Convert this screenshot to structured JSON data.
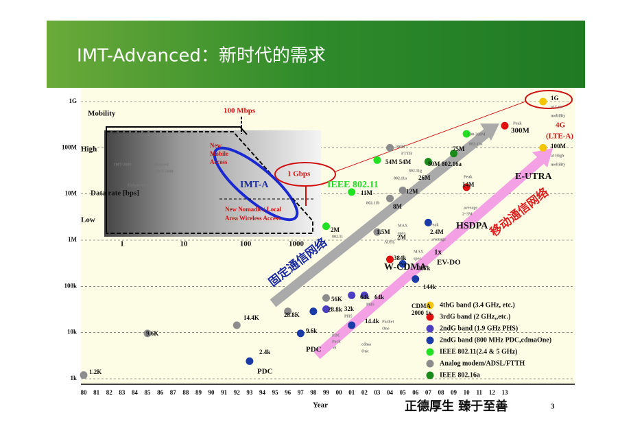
{
  "header": {
    "title": "IMT-Advanced：新时代的需求"
  },
  "chart_data": {
    "type": "scatter",
    "x_label": "Year",
    "log_y": true,
    "grid": true,
    "ylim": [
      1000,
      1000000000
    ],
    "yticks": [
      {
        "value": 1000,
        "label": "1k"
      },
      {
        "value": 10000,
        "label": "10k"
      },
      {
        "value": 100000,
        "label": "100k"
      },
      {
        "value": 1000000,
        "label": "1M"
      },
      {
        "value": 10000000,
        "label": "10M"
      },
      {
        "value": 100000000,
        "label": "100M"
      },
      {
        "value": 1000000000,
        "label": "1G"
      }
    ],
    "xlim": [
      1980,
      2018
    ],
    "xticks": [
      {
        "value": 1980,
        "label": "80"
      },
      {
        "value": 1981,
        "label": "81"
      },
      {
        "value": 1982,
        "label": "82"
      },
      {
        "value": 1983,
        "label": "83"
      },
      {
        "value": 1984,
        "label": "84"
      },
      {
        "value": 1985,
        "label": "85"
      },
      {
        "value": 1986,
        "label": "86"
      },
      {
        "value": 1987,
        "label": "87"
      },
      {
        "value": 1988,
        "label": "88"
      },
      {
        "value": 1989,
        "label": "89"
      },
      {
        "value": 1990,
        "label": "90"
      },
      {
        "value": 1991,
        "label": "91"
      },
      {
        "value": 1992,
        "label": "92"
      },
      {
        "value": 1993,
        "label": "93"
      },
      {
        "value": 1994,
        "label": "94"
      },
      {
        "value": 1995,
        "label": "95"
      },
      {
        "value": 1996,
        "label": "96"
      },
      {
        "value": 1997,
        "label": "97"
      },
      {
        "value": 1998,
        "label": "98"
      },
      {
        "value": 1999,
        "label": "99"
      },
      {
        "value": 2000,
        "label": "00"
      },
      {
        "value": 2001,
        "label": "01"
      },
      {
        "value": 2002,
        "label": "02"
      },
      {
        "value": 2003,
        "label": "03"
      },
      {
        "value": 2004,
        "label": "04"
      },
      {
        "value": 2005,
        "label": "05"
      },
      {
        "value": 2006,
        "label": "06"
      },
      {
        "value": 2007,
        "label": "07"
      },
      {
        "value": 2008,
        "label": "08"
      },
      {
        "value": 2009,
        "label": "09"
      },
      {
        "value": 2010,
        "label": "10"
      },
      {
        "value": 2011,
        "label": "11"
      },
      {
        "value": 2012,
        "label": "12"
      },
      {
        "value": 2013,
        "label": "13"
      }
    ],
    "series": [
      {
        "name": "4thG band  (3.4 GHz,  etc.)",
        "color": "#f5c400",
        "x": [
          2016,
          2016
        ],
        "values": [
          1000000000,
          100000000
        ]
      },
      {
        "name": "3rdG band  (2 GHz,,etc.)",
        "color": "#e01010",
        "x": [
          2004,
          2010,
          2013
        ],
        "values": [
          384000,
          14000000,
          300000000
        ]
      },
      {
        "name": "2ndG band  (1.9 GHz  PHS)",
        "color": "#4b3fc0",
        "x": [
          1999,
          2001,
          2002
        ],
        "values": [
          32000,
          64000,
          64000
        ]
      },
      {
        "name": "2ndG band  (800 MHz  PDC,cdmaOne)",
        "color": "#1a3aa8",
        "x": [
          1993,
          1997,
          1998,
          2001,
          2005,
          2006,
          2007
        ],
        "values": [
          2400,
          9600,
          28800,
          14400,
          307000,
          144000,
          2400000
        ]
      },
      {
        "name": "IEEE   802.11(2.4 & 5 GHz)",
        "color": "#22e022",
        "x": [
          1999,
          2001,
          2003,
          2010
        ],
        "values": [
          2000000,
          11000000,
          54000000,
          200000000
        ]
      },
      {
        "name": "Analog modem/ADSL/FTTH",
        "color": "#8c8c8c",
        "x": [
          1980,
          1985,
          1992,
          1996,
          1999,
          2003,
          2004,
          2005,
          2004
        ],
        "values": [
          1200,
          9600,
          14400,
          28800,
          56000,
          1500000,
          8000000,
          12000000,
          100000000
        ]
      },
      {
        "name": "IEEE   802.16a",
        "color": "#1a8a1a",
        "x": [
          2007,
          2009
        ],
        "values": [
          50000000,
          75000000
        ]
      }
    ]
  },
  "annotations": [
    "1.2K",
    "9.6K",
    "14.4K",
    "28.8K",
    "56K",
    "2.4k",
    "PDC",
    "9.6k",
    "PDC",
    "28.8k",
    "32k",
    "PHS",
    "64k",
    "64k",
    "PHS",
    "PDC",
    "Pack",
    "et",
    "14.4k",
    "Packet",
    "One",
    "cdma",
    "One",
    "2M",
    "802.11",
    "11M",
    "802.11b",
    "1.5M",
    "ADSL",
    "8M",
    "MAX",
    "spec.",
    "2M",
    "384k",
    "MAX",
    "spec.",
    "307k",
    "144k",
    "CDMA",
    "2000 1x",
    "W-CDMA",
    "1x",
    "EV-DO",
    "Peak",
    "2.4M",
    "average",
    "HSDPA",
    "Peak",
    "14M",
    "average",
    "2~3M",
    "E-UTRA",
    "Peak",
    "300M",
    "100M",
    "FTTH",
    "54M 54M",
    "802.11g",
    "802.11a",
    "26M",
    "12M",
    "75M",
    "50M 802.16a",
    "100-200M",
    "802.11n",
    "1G",
    "at Low",
    "mobility",
    "4G",
    "(LTE-A)",
    "100M",
    "at High",
    "mobility",
    "IEEE 802.11"
  ],
  "inset": {
    "mobility": "Mobility",
    "high": "High",
    "low": "Low",
    "x_label": "Data rate [bps]",
    "x_ticks": [
      "1",
      "10",
      "100",
      "1000"
    ],
    "r100": "100 Mbps",
    "r1g": "1 Gbps",
    "imta": "IMT-A",
    "imt2000": "IMT-2000",
    "enhanced": "Enhanced",
    "imt2000b": "IMT-2000",
    "enhancement": "Enhancement",
    "new_mobile": [
      "New",
      "Mobile",
      "Access"
    ],
    "nomadic": [
      "New Nomadic / Local",
      "Area Wireless Access"
    ]
  },
  "arrows": {
    "fixed": "固定通信网络",
    "mobile": "移动通信网络"
  },
  "footer": {
    "motto": "正德厚生  臻于至善",
    "page": "3"
  }
}
